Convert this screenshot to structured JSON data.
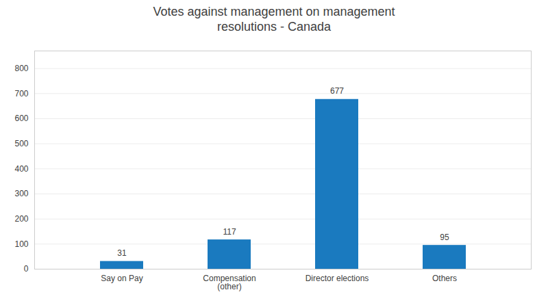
{
  "chart_data": {
    "type": "bar",
    "title": "Votes against management on management\nresolutions - Canada",
    "categories": [
      "Say on Pay",
      "Compensation\n(other)",
      "Director elections",
      "Others"
    ],
    "values": [
      31,
      117,
      677,
      95
    ],
    "color": "#1a7abf",
    "ylim": [
      0,
      870
    ],
    "yticks": [
      0,
      100,
      200,
      300,
      400,
      500,
      600,
      700,
      800
    ],
    "grid": true,
    "data_labels": true
  }
}
